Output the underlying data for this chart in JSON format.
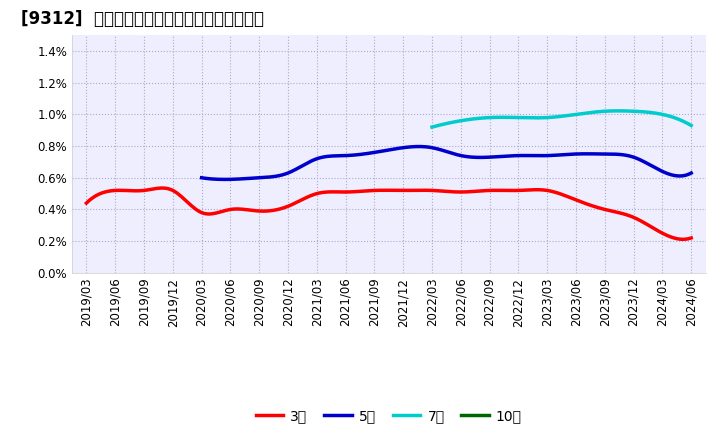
{
  "title": "[9312]  当期純利益マージンの標準偏差の推移",
  "legend_labels": [
    "3年",
    "5年",
    "7年",
    "10年"
  ],
  "legend_colors": [
    "#ff0000",
    "#0000cc",
    "#00cccc",
    "#006600"
  ],
  "ylim": [
    0.0,
    0.015
  ],
  "yticks": [
    0.0,
    0.002,
    0.004,
    0.006,
    0.008,
    0.01,
    0.012,
    0.014
  ],
  "ytick_labels": [
    "0.0%",
    "0.2%",
    "0.4%",
    "0.6%",
    "0.8%",
    "1.0%",
    "1.2%",
    "1.4%"
  ],
  "x_labels": [
    "2019/03",
    "2019/06",
    "2019/09",
    "2019/12",
    "2020/03",
    "2020/06",
    "2020/09",
    "2020/12",
    "2021/03",
    "2021/06",
    "2021/09",
    "2021/12",
    "2022/03",
    "2022/06",
    "2022/09",
    "2022/12",
    "2023/03",
    "2023/06",
    "2023/09",
    "2023/12",
    "2024/03",
    "2024/06"
  ],
  "series_3y": [
    0.0044,
    0.0052,
    0.0052,
    0.0052,
    0.0038,
    0.004,
    0.0039,
    0.0042,
    0.005,
    0.0051,
    0.0052,
    0.0052,
    0.0052,
    0.0051,
    0.0052,
    0.0052,
    0.0052,
    0.0046,
    0.004,
    0.0035,
    0.0025,
    0.0022
  ],
  "series_5y": [
    null,
    null,
    null,
    null,
    0.006,
    0.0059,
    0.006,
    0.0063,
    0.0072,
    0.0074,
    0.0076,
    0.0079,
    0.0079,
    0.0074,
    0.0073,
    0.0074,
    0.0074,
    0.0075,
    0.0075,
    0.0073,
    0.0064,
    0.0063
  ],
  "series_7y": [
    null,
    null,
    null,
    null,
    null,
    null,
    null,
    null,
    null,
    null,
    null,
    null,
    0.0092,
    0.0096,
    0.0098,
    0.0098,
    0.0098,
    0.01,
    0.0102,
    0.0102,
    0.01,
    0.0093
  ],
  "series_10y": [
    null,
    null,
    null,
    null,
    null,
    null,
    null,
    null,
    null,
    null,
    null,
    null,
    null,
    null,
    null,
    null,
    null,
    null,
    null,
    null,
    null,
    null
  ],
  "background_color": "#ffffff",
  "grid_color": "#aaaacc",
  "plot_bg_color": "#eeeeff",
  "title_fontsize": 12,
  "tick_fontsize": 8.5,
  "linewidth": 2.5
}
